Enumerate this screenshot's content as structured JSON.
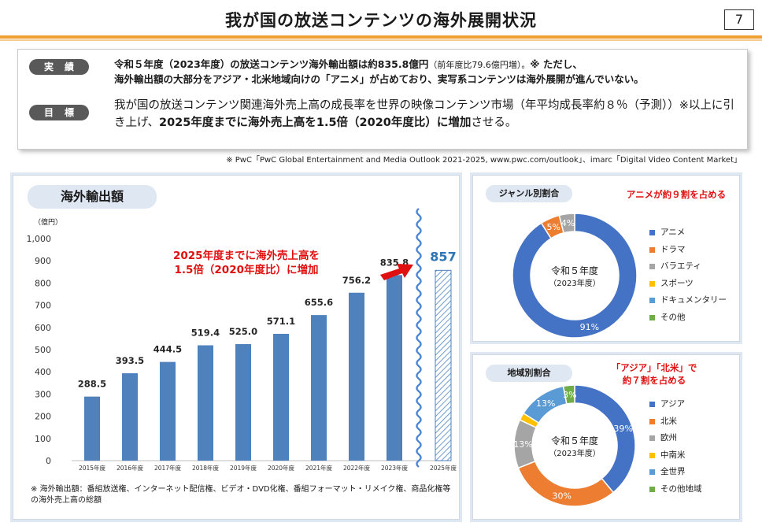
{
  "header": {
    "title": "我が国の放送コンテンツの海外展開状況",
    "page_number": "7"
  },
  "summary": {
    "row1": {
      "label": "実績",
      "text_bold": "令和５年度（2023年度）の放送コンテンツ海外輸出額は約835.8億円",
      "text_small": "（前年度比79.6億円増）。",
      "text_mark": "※ ただし、",
      "text_line2": "海外輸出額の大部分をアジア・北米地域向けの「アニメ」が占めており、実写系コンテンツは海外展開が進んでいない。"
    },
    "row2": {
      "label": "目標",
      "text_part1": "我が国の放送コンテンツ関連海外売上高の成長率を世界の映像コンテンツ市場（年平均成長率約８％（予測））※以上に引き上げ、",
      "text_bold": "2025年度までに海外売上高を1.5倍（2020年度比）に増加",
      "text_part2": "させる。"
    }
  },
  "source_note": "※ PwC「PwC Global Entertainment and Media Outlook 2021-2025, www.pwc.com/outlook」、imarc「Digital Video Content Market」",
  "export_chart": {
    "panel_title": "海外輸出額",
    "footnote": "※ 海外輸出額：番組放送権、インターネット配信権、ビデオ・DVD化権、番組フォーマット・リメイク権、商品化権等の海外売上高の総額"
  },
  "chart_data": [
    {
      "type": "bar",
      "title": "海外輸出額",
      "ylabel": "（億円）",
      "ylim": [
        0,
        1000
      ],
      "yticks": [
        0,
        100,
        200,
        300,
        400,
        500,
        600,
        700,
        800,
        900,
        1000
      ],
      "ytick_labels": [
        "0",
        "100",
        "200",
        "300",
        "400",
        "500",
        "600",
        "700",
        "800",
        "900",
        "1,000"
      ],
      "categories": [
        "2015年度",
        "2016年度",
        "2017年度",
        "2018年度",
        "2019年度",
        "2020年度",
        "2021年度",
        "2022年度",
        "2023年度",
        "2025年度"
      ],
      "values": [
        288.5,
        393.5,
        444.5,
        519.4,
        525.0,
        571.1,
        655.6,
        756.2,
        835.8,
        857
      ],
      "value_labels": [
        "288.5",
        "393.5",
        "444.5",
        "519.4",
        "525.0",
        "571.1",
        "655.6",
        "756.2",
        "835.8",
        "857"
      ],
      "target_index": 9,
      "annotation": [
        "2025年度までに海外売上高を",
        "1.5倍（2020年度比）に増加"
      ],
      "colors": {
        "bar": "#4f81bd",
        "target": "#4f81bd",
        "target_label": "#2e75b6",
        "annotation": "#e01010",
        "arrow": "#e01010",
        "break": "#4a86d8"
      }
    },
    {
      "type": "pie",
      "title": "ジャンル別割合",
      "center_label": [
        "令和５年度",
        "（2023年度）"
      ],
      "note": "アニメが約９割を占める",
      "labels": [
        "アニメ",
        "ドラマ",
        "バラエティ",
        "スポーツ",
        "ドキュメンタリー",
        "その他"
      ],
      "values": [
        91,
        5,
        4,
        0,
        0,
        0
      ],
      "value_labels": [
        "91%",
        "5%",
        "4%",
        "",
        "",
        ""
      ],
      "colors": [
        "#4472c4",
        "#ed7d31",
        "#a5a5a5",
        "#ffc000",
        "#5b9bd5",
        "#70ad47"
      ]
    },
    {
      "type": "pie",
      "title": "地域別割合",
      "center_label": [
        "令和５年度",
        "（2023年度）"
      ],
      "note": "「アジア」「北米」で約７割を占める",
      "note_lines": [
        "「アジア」「北米」で",
        "約７割を占める"
      ],
      "labels": [
        "アジア",
        "北米",
        "欧州",
        "中南米",
        "全世界",
        "その他地域"
      ],
      "values": [
        39,
        30,
        13,
        2,
        13,
        3
      ],
      "value_labels": [
        "39%",
        "30%",
        "13%",
        "",
        "13%",
        "3%"
      ],
      "colors": [
        "#4472c4",
        "#ed7d31",
        "#a5a5a5",
        "#ffc000",
        "#5b9bd5",
        "#70ad47"
      ]
    }
  ]
}
